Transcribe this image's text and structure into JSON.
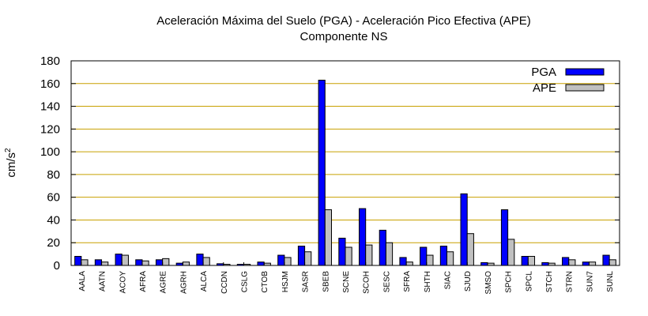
{
  "chart_data": {
    "type": "bar",
    "title": "Aceleración Máxima del Suelo (PGA) -  Aceleración Pico Efectiva (APE)",
    "subtitle": "Componente NS",
    "ylabel": "cm/s",
    "ylabel_superscript": "2",
    "ylim": [
      0,
      180
    ],
    "yticks": [
      0,
      20,
      40,
      60,
      80,
      100,
      120,
      140,
      160,
      180
    ],
    "grid": true,
    "legend_position": "top-right",
    "categories": [
      "AALA",
      "AATN",
      "ACOY",
      "AFRA",
      "AGRE",
      "AGRH",
      "ALCA",
      "CCDN",
      "CSLG",
      "CTOB",
      "HSJM",
      "SASR",
      "SBEB",
      "SCNE",
      "SCOH",
      "SESC",
      "SFRA",
      "SHTH",
      "SIAC",
      "SJUD",
      "SMSO",
      "SPCH",
      "SPCL",
      "STCH",
      "STRN",
      "SUN7",
      "SUNL"
    ],
    "series": [
      {
        "name": "PGA",
        "color": "#0000ff",
        "values": [
          8,
          5,
          10,
          5,
          5,
          2,
          10,
          1.5,
          1,
          3,
          9,
          17,
          163,
          24,
          50,
          31,
          7,
          16,
          17,
          63,
          2.5,
          49,
          8,
          2.5,
          7,
          3,
          9
        ]
      },
      {
        "name": "APE",
        "color": "#c0c0c0",
        "values": [
          5,
          3,
          9,
          4,
          6,
          3,
          7,
          1,
          1,
          2,
          7,
          12,
          49,
          16,
          18,
          20,
          3,
          9,
          12,
          28,
          2,
          23,
          8,
          2,
          5,
          3,
          5
        ]
      }
    ]
  }
}
